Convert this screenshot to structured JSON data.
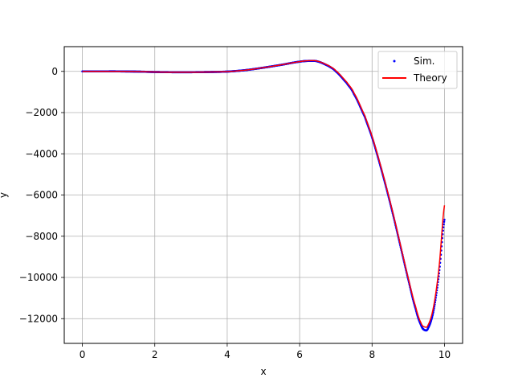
{
  "chart_data": {
    "type": "scatter",
    "title": "",
    "xlabel": "x",
    "ylabel": "y",
    "xlim": [
      -0.5,
      10.5
    ],
    "ylim": [
      -13200,
      1200
    ],
    "xticks": [
      0,
      2,
      4,
      6,
      8,
      10
    ],
    "yticks": [
      0,
      -2000,
      -4000,
      -6000,
      -8000,
      -10000,
      -12000
    ],
    "grid": true,
    "legend_position": "top-right",
    "series": [
      {
        "name": "Sim.",
        "kind": "scatter",
        "color": "#0000ff",
        "x": [
          0,
          0.5,
          1.0,
          1.5,
          2.0,
          2.5,
          3.0,
          3.5,
          4.0,
          4.5,
          5.0,
          5.5,
          6.0,
          6.3,
          6.5,
          6.8,
          7.0,
          7.3,
          7.5,
          7.8,
          8.0,
          8.2,
          8.4,
          8.6,
          8.8,
          9.0,
          9.2,
          9.35,
          9.45,
          9.55,
          9.7,
          9.85,
          10.0
        ],
        "y": [
          0,
          0,
          0,
          -10,
          -30,
          -40,
          -40,
          -30,
          -10,
          60,
          180,
          320,
          470,
          510,
          480,
          260,
          0,
          -560,
          -1100,
          -2200,
          -3200,
          -4400,
          -5700,
          -7100,
          -8600,
          -10100,
          -11500,
          -12300,
          -12550,
          -12450,
          -11600,
          -9800,
          -7200
        ]
      },
      {
        "name": "Theory",
        "kind": "line",
        "color": "#ff0000",
        "x": [
          0,
          0.5,
          1.0,
          1.5,
          2.0,
          2.5,
          3.0,
          3.5,
          4.0,
          4.5,
          5.0,
          5.5,
          6.0,
          6.3,
          6.5,
          6.8,
          7.0,
          7.3,
          7.5,
          7.8,
          8.0,
          8.2,
          8.4,
          8.6,
          8.8,
          9.0,
          9.2,
          9.35,
          9.45,
          9.55,
          9.7,
          9.85,
          10.0
        ],
        "y": [
          0,
          0,
          0,
          -10,
          -30,
          -40,
          -40,
          -30,
          -10,
          60,
          180,
          320,
          470,
          520,
          490,
          280,
          30,
          -520,
          -1050,
          -2150,
          -3150,
          -4350,
          -5650,
          -7050,
          -8550,
          -10050,
          -11400,
          -12200,
          -12400,
          -12300,
          -11400,
          -9500,
          -6500
        ]
      }
    ]
  }
}
